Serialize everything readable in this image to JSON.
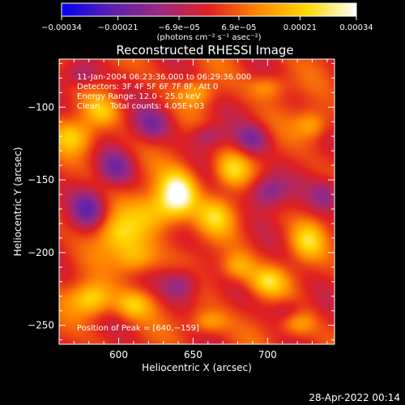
{
  "chart_data": {
    "type": "heatmap",
    "title": "Reconstructed RHESSI Image",
    "xlabel": "Heliocentric X (arcsec)",
    "ylabel": "Heliocentric Y (arcsec)",
    "xlim": [
      560,
      745
    ],
    "ylim": [
      -263,
      -67
    ],
    "x_ticks": [
      {
        "value": 600,
        "label": "600"
      },
      {
        "value": 650,
        "label": "650"
      },
      {
        "value": 700,
        "label": "700"
      }
    ],
    "y_ticks": [
      {
        "value": -100,
        "label": "−100"
      },
      {
        "value": -150,
        "label": "−150"
      },
      {
        "value": -200,
        "label": "−200"
      },
      {
        "value": -250,
        "label": "−250"
      }
    ],
    "colorbar": {
      "unit": "(photons cm⁻² s⁻¹ asec⁻²)",
      "range": [
        -0.00034,
        0.00034
      ],
      "ticks": [
        {
          "value": -0.00034,
          "label": "−0.00034"
        },
        {
          "value": -0.00021,
          "label": "−0.00021"
        },
        {
          "value": -6.9e-05,
          "label": "−6.9e−05"
        },
        {
          "value": 6.9e-05,
          "label": "6.9e−05"
        },
        {
          "value": 0.00021,
          "label": "0.00021"
        },
        {
          "value": 0.00034,
          "label": "0.00034"
        }
      ],
      "colors": [
        "#0000f0",
        "#5a20b0",
        "#9a2a80",
        "#e02020",
        "#ff8800",
        "#ffd800",
        "#ffffff"
      ]
    },
    "annotations": [
      "11-Jan-2004 06:23:36.000 to 06:29:36.000",
      "Detectors: 3F 4F 5F 6F 7F 8F, Att 0",
      "Energy Range: 12.0 - 25.0 keV",
      "Clean    Total counts: 4.05E+03"
    ],
    "peak_label": "Position of Peak = [640,−159]",
    "peak": {
      "x": 640,
      "y": -159
    },
    "blobs": [
      {
        "x": 640,
        "y": -159,
        "sx": 9,
        "sy": 11,
        "amp": 1.0
      },
      {
        "x": 625,
        "y": -172,
        "sx": 12,
        "sy": 10,
        "amp": 0.55
      },
      {
        "x": 600,
        "y": -188,
        "sx": 11,
        "sy": 10,
        "amp": 0.6
      },
      {
        "x": 612,
        "y": -204,
        "sx": 10,
        "sy": 8,
        "amp": 0.55
      },
      {
        "x": 582,
        "y": -232,
        "sx": 10,
        "sy": 8,
        "amp": 0.72
      },
      {
        "x": 610,
        "y": -236,
        "sx": 9,
        "sy": 7,
        "amp": 0.55
      },
      {
        "x": 570,
        "y": -120,
        "sx": 10,
        "sy": 8,
        "amp": 0.55
      },
      {
        "x": 588,
        "y": -103,
        "sx": 8,
        "sy": 7,
        "amp": 0.45
      },
      {
        "x": 676,
        "y": -143,
        "sx": 8,
        "sy": 8,
        "amp": 0.6
      },
      {
        "x": 665,
        "y": -175,
        "sx": 9,
        "sy": 9,
        "amp": 0.55
      },
      {
        "x": 680,
        "y": -210,
        "sx": 8,
        "sy": 7,
        "amp": 0.5
      },
      {
        "x": 700,
        "y": -220,
        "sx": 9,
        "sy": 7,
        "amp": 0.6
      },
      {
        "x": 727,
        "y": -192,
        "sx": 8,
        "sy": 9,
        "amp": 0.55
      },
      {
        "x": 730,
        "y": -112,
        "sx": 8,
        "sy": 7,
        "amp": 0.5
      },
      {
        "x": 700,
        "y": -86,
        "sx": 9,
        "sy": 6,
        "amp": 0.4
      },
      {
        "x": 653,
        "y": -90,
        "sx": 8,
        "sy": 6,
        "amp": 0.4
      },
      {
        "x": 720,
        "y": -248,
        "sx": 8,
        "sy": 7,
        "amp": 0.45
      },
      {
        "x": 660,
        "y": -248,
        "sx": 9,
        "sy": 6,
        "amp": 0.45
      },
      {
        "x": 598,
        "y": -142,
        "sx": 8,
        "sy": 8,
        "amp": -0.5
      },
      {
        "x": 622,
        "y": -112,
        "sx": 9,
        "sy": 8,
        "amp": -0.5
      },
      {
        "x": 580,
        "y": -170,
        "sx": 8,
        "sy": 9,
        "amp": -0.6
      },
      {
        "x": 700,
        "y": -158,
        "sx": 9,
        "sy": 8,
        "amp": -0.6
      },
      {
        "x": 690,
        "y": -122,
        "sx": 8,
        "sy": 7,
        "amp": -0.5
      },
      {
        "x": 740,
        "y": -160,
        "sx": 8,
        "sy": 8,
        "amp": -0.5
      },
      {
        "x": 642,
        "y": -222,
        "sx": 9,
        "sy": 8,
        "amp": -0.55
      },
      {
        "x": 715,
        "y": -240,
        "sx": 8,
        "sy": 6,
        "amp": -0.4
      },
      {
        "x": 660,
        "y": -120,
        "sx": 8,
        "sy": 6,
        "amp": -0.4
      },
      {
        "x": 575,
        "y": -78,
        "sx": 8,
        "sy": 6,
        "amp": -0.4
      }
    ]
  },
  "footer": {
    "timestamp": "28-Apr-2022 00:14"
  }
}
